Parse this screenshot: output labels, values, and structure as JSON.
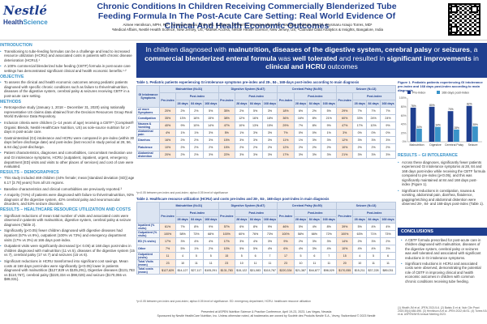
{
  "header": {
    "logo_brand": "Nestlé",
    "logo_sub_a": "Health",
    "logo_sub_b": "Science",
    "title": "Chronic Conditions In Children Receiving Commercially Blenderized Tube Feeding Formula In The Post-Acute Care Setting: Real World Evidence Of Clinical And Health Economic Outcomes",
    "authors": "Aimee Henrikson, MPH, RD¹, Amarsinh Desai, PhD, MS, B.Pharm, D.Pharm², Francine Allen, RD¹, Swapna Yeddula, Btech³, Krysmaru Araujo Torres, MD¹",
    "affiliations": "¹Medical Affairs, Nestlé Health Science, New Jersey, US; ²Market Access, Nestlé Health Science, New Jersey, US; ³Clarivate Data Analytics & Insights, Bangalore, India"
  },
  "left": {
    "intro_section": "INTRODUCTION",
    "intro_1": "Transitioning to tube-feeding formulas can be a challenge and lead to increased resource utilization (HCRU) and associated costs in patients with chronic disease deterioration (HCRU).¹",
    "intro_2": "A 100% commercial blenderized tube feeding (CBTF) formula in post-acute care settings has demonstrated significant clinical and health economic benefits.¹·²",
    "obj_section": "OBJECTIVE",
    "obj_1": "To assess the clinical and health economic outcomes among pediatric patients diagnosed with specific chronic conditions such as failure to thrive/malnutrition, diseases of the digestive system, cerebral palsy & seizures receiving CBTF in a post-acute care setting.",
    "methods_section": "METHODS",
    "methods_1": "Retrospective study (January 1, 2018 – December 31, 2020) using nationally representative US claims data obtained from the Decision Resources Group Real World Evidence Data Repository.",
    "methods_2": "Inclusion criteria were children (1–14 years of age) receiving a CBTF* (Compleat® Organic Blends, Nestlé HealthCare Nutrition, US) as sole-source nutrition for ≥7 days in post-acute care.",
    "methods_3": "Gastrointestinal (GI) intolerance and HCRU were compared in pre-index (within 30 days before discharge date) and post-index (last record in study period at 28, 56, & 84 day) post-discharge.",
    "methods_4": "Patient characteristics, diagnoses and comorbidities, concomitant medication use and GI intolerance symptoms, HCRU (outpatient, inpatient, urgent, emergency department [ED] visits and visits to other places of services) and cost of care were evaluated.",
    "results_section": "RESULTS – DEMOGRAPHICS",
    "results_1": "This study included 469 children (44% female; mean [standard deviation (SD)] age 6.17 [3.78] years) from all US regions.",
    "results_2": "Baseline characteristics and clinical comorbidities are previously reported.³",
    "results_3": "A majority (74%) of patients were diagnosed with failure to thrive/malnutrition, 92% diagnosis of the digestive system, 42% cerebral palsy and neuromuscular disorders, and 53% seizure disorders.",
    "hcru_section": "RESULTS – HEALTHCARE RESOURCE UTILIZATION AND COSTS",
    "hcru_1": "Significant reductions of mean total number of visits and associated costs were observed in patients with malnutrition, digestive system, cerebral palsy & seizure diagnoses (Table 2).",
    "hcru_2": "Significantly (p<0.05) fewer children diagnosed with digestive diseases had inpatient (57% vs 9%), outpatient (100% vs 73%) and emergency department visits (17% vs 3%) at 166 days post-index.",
    "hcru_3": "Outpatient visits were significantly decreased (p< 0.05) at 168 days post-index in children diagnosed with malnutrition (11 vs 5), diseases of the digestive system (15 vs 7), cerebral palsy (17 vs 7) and seizures (15 vs 6).",
    "hcru_4": "Significant reductions in HCRU transformed into significant cost savings. Mean costs at 168 days post-index were significantly (p<0.05) lower in patients diagnosed with malnutrition ($127,829 vs $105,291), Digestive diseases ($131,783 vs $110,767), cerebral palsy ($220,334 vs $98,029) and seizure ($170,055 vs $89,031)."
  },
  "banner": {
    "part1": "In children diagnosed with ",
    "b1": "malnutrition, diseases of the digestive system, cerebral palsy",
    "part2": " or ",
    "b2": "seizures",
    "part3": ", a ",
    "b3": "commercial blenderized enteral formula",
    "part4": " was ",
    "b4": "well tolerated",
    "part5": " and resulted in ",
    "b5": "significant improvements",
    "part6": " in ",
    "b6": "clinical and HCRU",
    "part7": " outcomes"
  },
  "table1": {
    "caption": "Table 1. Pediatric patients experiencing GI intolerance symptoms pre-index and 28-, 84-, 168-days post-index according to main diagnosis",
    "corner": "GI Intolerance Symptoms",
    "groups": [
      "Malnutrition (N=31)",
      "Digestive System (N=87)",
      "Cerebral Palsy (N=50)",
      "Seizure (N=13)"
    ],
    "sub_pre": "Pre-index",
    "sub_post": "Post-index",
    "days": [
      "28 days",
      "84 days",
      "168 days"
    ],
    "rows": [
      {
        "label": "≥2 more Symptoms",
        "vals": [
          "20%",
          "2%",
          "2%",
          "5%",
          "35%",
          "2%",
          "5%",
          "3%",
          "18%",
          "6%",
          "2%",
          "5%",
          "29%",
          "7%",
          "7%",
          "7%"
        ]
      },
      {
        "label": "Constipation",
        "vals": [
          "35%",
          "13%",
          "16%",
          "15%",
          "38%",
          "12%",
          "16%",
          "18%",
          "36%",
          "16%",
          "8%",
          "21%",
          "60%",
          "33%",
          "24%",
          "24%"
        ]
      },
      {
        "label": "Nausea & Vomiting",
        "vals": [
          "40%",
          "9%",
          "10%",
          "14%",
          "47%",
          "10%",
          "13%",
          "15%",
          "29%",
          "7%",
          "8%",
          "9%",
          "47%",
          "17%",
          "10%",
          "9%"
        ]
      },
      {
        "label": "Abdominal pain",
        "vals": [
          "4%",
          "1%",
          "1%",
          "3%",
          "5%",
          "1%",
          "3%",
          "3%",
          "7%",
          "0%",
          "0%",
          "1%",
          "3%",
          "0%",
          "0%",
          "0%"
        ]
      },
      {
        "label": "Diarrhea",
        "vals": [
          "16%",
          "2%",
          "2%",
          "3%",
          "15%",
          "3%",
          "3%",
          "3%",
          "11%",
          "1%",
          "3%",
          "3%",
          "12%",
          "3%",
          "3%",
          "3%"
        ]
      },
      {
        "label": "Flatulence",
        "vals": [
          "10%",
          "2%",
          "2%",
          "2%",
          "15%",
          "2%",
          "2%",
          "2%",
          "12%",
          "2%",
          "2%",
          "2%",
          "10%",
          "2%",
          "2%",
          "2%"
        ]
      },
      {
        "label": "Abdominal distention",
        "vals": [
          "20%",
          "2%",
          "2%",
          "3%",
          "22%",
          "3%",
          "3%",
          "3%",
          "17%",
          "3%",
          "3%",
          "3%",
          "21%",
          "3%",
          "3%",
          "3%"
        ]
      }
    ],
    "footnote": "*p<0.05 between pre-index and post-index; alpha=0.05 level of significance"
  },
  "figure": {
    "caption": "Figure 1. Pediatric patients experiencing GI intolerance pre-index and 168 days post-index according to main diagnosis",
    "legend_pre": "Pre-index",
    "legend_post": "168 days post-index",
    "pre_color": "#1f3f8f",
    "post_color": "#3a93c9"
  },
  "chart_data": {
    "type": "bar",
    "categories": [
      "Malnutrition",
      "Digestive",
      "Cerebral Palsy",
      "Seizure"
    ],
    "series": [
      {
        "name": "Pre-index",
        "values": [
          78,
          80,
          70,
          82
        ]
      },
      {
        "name": "168 days post-index",
        "values": [
          30,
          34,
          28,
          35
        ]
      }
    ],
    "ylim": [
      0,
      100
    ],
    "title": "",
    "xlabel": "",
    "ylabel": ""
  },
  "results_gi": {
    "section": "RESULTS – GI INTOLERANCE",
    "b1": "Across these diagnoses, significantly fewer patients experienced GI intolerance symptoms at 28, 84 and 168 days post-index while receiving the CBTF formula compared to pre-index (p<0.05), and this was significantly maintained at 84 and 168 days post-index (Figure 1).",
    "b2": "Significant reductions in constipation, nausea & vomiting, abdominal pain, diarrhea, flatulence, gagging/retching and abdominal distention were observed 28-, 84- and 168-days post-index (Table 1)."
  },
  "table2": {
    "caption": "Table 2. Healthcare resource utilization (HCRU) and costs pre-index and 28-, 84-, 168-days post-index in main diagnosis",
    "corner": "",
    "groups": [
      "Malnutrition (N=31)",
      "Digestive System (N=87)",
      "Cerebral Palsy (N=50)",
      "Seizure (N=13)"
    ],
    "sub_pre": "Pre-index",
    "sub_post": "Post-index",
    "days": [
      "28 days",
      "84 days",
      "168 days"
    ],
    "rows": [
      {
        "label": "Inpatient (% visits)",
        "vals": [
          "61%",
          "7%",
          "8%",
          "9%",
          "57%",
          "6%",
          "8%",
          "9%",
          "46%",
          "5%",
          "4%",
          "8%",
          "39%",
          "5%",
          "4%",
          "4%"
        ]
      },
      {
        "label": "Outpatient (% visits)",
        "vals": [
          "100%",
          "58%",
          "73%",
          "68%",
          "100%",
          "60%",
          "76%",
          "73%",
          "100%",
          "58%",
          "66%",
          "72%",
          "100%",
          "63%",
          "71%",
          "73%"
        ]
      },
      {
        "label": "ED (% visits)",
        "vals": [
          "17%",
          "3%",
          "4%",
          "4%",
          "17%",
          "3%",
          "4%",
          "3%",
          "9%",
          "2%",
          "3%",
          "3%",
          "14%",
          "2%",
          "3%",
          "2%"
        ]
      },
      {
        "label": "Other",
        "vals": [
          "7%",
          "5%",
          "1%",
          "2%",
          "10%",
          "5%",
          "5%",
          "4%",
          "6%",
          "4%",
          "3%",
          "4%",
          "10%",
          "4%",
          "4%",
          "3%"
        ]
      },
      {
        "label": "Outpatient (visits)",
        "vals": [
          "11",
          "4",
          "5",
          "5",
          "15",
          "5",
          "6",
          "7",
          "17",
          "5",
          "6",
          "7",
          "15",
          "4",
          "5",
          "6"
        ]
      },
      {
        "label": "Total Visits (mean)",
        "vals": [
          "23",
          "10",
          "11",
          "11",
          "23",
          "10",
          "11",
          "11",
          "23",
          "10",
          "11",
          "11",
          "20",
          "10",
          "11",
          "11"
        ]
      },
      {
        "label": "Total costs (mean)",
        "vals": [
          "$127,829",
          "$14,127",
          "$27,117",
          "$105,291",
          "$131,783",
          "$15,122",
          "$31,083",
          "$110,767",
          "$220,334",
          "$21,387",
          "$44,877",
          "$98,029",
          "$170,055",
          "$15,211",
          "$37,228",
          "$89,031"
        ]
      }
    ],
    "footnote": "*p<0.05 between pre-index and post-index; alpha=0.05 level of significance. ED: emergency department; HCRU: healthcare resource utilization"
  },
  "conclusions": {
    "head": "CONCLUSIONS",
    "b1": "A CBTF formula prescribed for post-acute care in children diagnosed with malnutrition, diseases of the digestive system, cerebral palsy or seizures was well tolerated and associated with significant reductions in GI intolerance symptoms.",
    "b2": "Significant reductions in HCRU and associated costs were observed, demonstrating the potential role of CBTF in improving clinical and health economic outcomes in children with common chronic conditions receiving tube feeding."
  },
  "refs": {
    "text": "(1) Wraith JM et al. JPEN 2021;5-6. (2) Batsis D et al. Nutr Clin Pract 2020;35(4):684-696. (3) Henrikson A et al. JPEN 2022;46:S1. (4) Torres KA et al. ASPEN/NHS Annual Meeting 2023."
  },
  "footer": {
    "line1": "Presented at ASPEN Nutrition Science & Practice Conference, April 19-23, 2023, Las Vegas, Nevada",
    "line2": "Sponsored by Nestlé HealthCare Nutrition, Inc. Unless otherwise noted, all trademarks are owned by Société des Produits Nestlé S.A., Vevey, Switzerland © 2023 Nestlé"
  }
}
